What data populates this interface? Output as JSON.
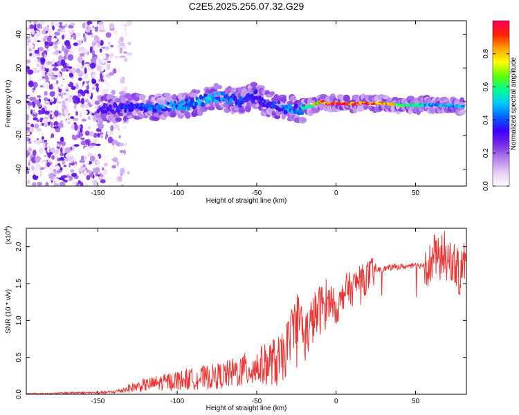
{
  "page_title": "C2E5.2025.255.07.32.G29",
  "chart_data": [
    {
      "type": "heatmap",
      "title": "C2E5.2025.255.07.32.G29",
      "xlabel": "Height of straight line (km)",
      "ylabel": "Frequency (Hz)",
      "xlim": [
        -195,
        82
      ],
      "ylim": [
        -50,
        48
      ],
      "xticks": [
        -150,
        -100,
        -50,
        0,
        50
      ],
      "yticks": [
        -40,
        -20,
        0,
        20,
        40
      ],
      "colorbar": {
        "label": "Normalized spectral amplitude",
        "range": [
          0.0,
          1.0
        ],
        "ticks": [
          0.0,
          0.2,
          0.4,
          0.6,
          0.8
        ],
        "tick_labels": [
          "0.0",
          "0.2",
          "0.4",
          "0.6",
          "0.8"
        ],
        "colormap": [
          "#ffffff",
          "#e6ccf5",
          "#b380ea",
          "#7a2be2",
          "#3a00ff",
          "#0060ff",
          "#00c8ff",
          "#00ff90",
          "#60ff00",
          "#ffff00",
          "#ffa000",
          "#ff2000",
          "#ff0060"
        ]
      },
      "signal_track": {
        "heights": [
          -150,
          -140,
          -130,
          -120,
          -110,
          -100,
          -90,
          -80,
          -75,
          -70,
          -60,
          -55,
          -50,
          -45,
          -40,
          -35,
          -30,
          -25,
          -20,
          -15,
          -10,
          -5,
          0,
          10,
          20,
          30,
          40,
          50,
          60,
          70,
          80
        ],
        "frequency": [
          -4,
          -4,
          -3,
          -3,
          -3,
          -2,
          -1,
          2,
          3,
          2,
          0,
          2,
          4,
          -1,
          -2,
          -3,
          -4,
          -5,
          -4,
          -2,
          0,
          -1,
          -1,
          -1,
          -1,
          -1,
          -2,
          -2,
          -2,
          -2,
          -3
        ],
        "amplitude": [
          0.3,
          0.35,
          0.4,
          0.4,
          0.45,
          0.45,
          0.45,
          0.5,
          0.5,
          0.45,
          0.4,
          0.35,
          0.35,
          0.35,
          0.4,
          0.4,
          0.45,
          0.45,
          0.55,
          0.7,
          0.9,
          0.95,
          1.0,
          1.0,
          1.0,
          0.9,
          0.7,
          0.6,
          0.5,
          0.5,
          0.5
        ]
      },
      "noise_region": {
        "x_range": [
          -195,
          -130
        ],
        "description_amplitude": [
          0.0,
          0.3
        ]
      }
    },
    {
      "type": "line",
      "xlabel": "Height of straight line (km)",
      "ylabel": "SNR (10 * v/v)",
      "yscale_label": "(x10",
      "yscale_exponent": "4",
      "yscale_suffix": ")",
      "xlim": [
        -195,
        82
      ],
      "ylim": [
        0,
        2.25
      ],
      "xticks": [
        -150,
        -100,
        -50,
        0,
        50
      ],
      "yticks": [
        0.0,
        0.5,
        1.0,
        1.5,
        2.0
      ],
      "ytick_labels": [
        "0.0",
        "0.5",
        "1.0",
        "1.5",
        "2.0"
      ],
      "color": "#ee3333",
      "series": [
        {
          "name": "SNR",
          "x": [
            -195,
            -180,
            -165,
            -150,
            -140,
            -135,
            -130,
            -120,
            -110,
            -100,
            -90,
            -80,
            -70,
            -60,
            -50,
            -45,
            -40,
            -35,
            -33,
            -30,
            -27,
            -25,
            -22,
            -20,
            -18,
            -15,
            -12,
            -10,
            -8,
            -5,
            -3,
            0,
            3,
            5,
            8,
            10,
            12,
            15,
            18,
            20,
            25,
            30,
            35,
            40,
            45,
            50,
            55,
            60,
            62,
            65,
            68,
            70,
            72,
            75,
            78,
            80,
            82
          ],
          "y": [
            0.01,
            0.01,
            0.02,
            0.02,
            0.03,
            0.05,
            0.08,
            0.12,
            0.15,
            0.18,
            0.2,
            0.22,
            0.25,
            0.3,
            0.35,
            0.38,
            0.42,
            0.45,
            0.5,
            0.7,
            0.95,
            1.05,
            1.0,
            0.75,
            0.85,
            1.0,
            1.1,
            1.15,
            1.2,
            1.25,
            1.3,
            1.15,
            1.25,
            1.4,
            1.45,
            1.4,
            1.5,
            1.55,
            1.55,
            1.6,
            1.68,
            1.7,
            1.72,
            1.73,
            1.73,
            1.74,
            1.75,
            1.77,
            1.9,
            1.8,
            1.95,
            1.7,
            1.85,
            1.75,
            1.6,
            1.8,
            1.78
          ]
        }
      ]
    }
  ]
}
